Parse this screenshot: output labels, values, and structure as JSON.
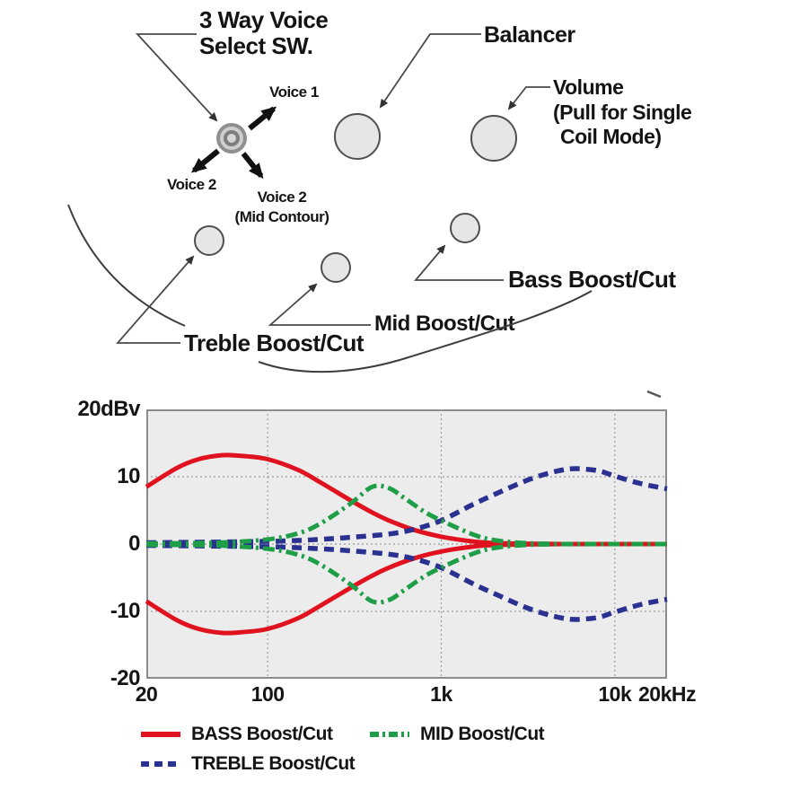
{
  "diagram": {
    "labels": {
      "voice_select_line1": "3 Way Voice",
      "voice_select_line2": "Select SW.",
      "balancer": "Balancer",
      "volume_line1": "Volume",
      "volume_line2": "(Pull for Single",
      "volume_line3": "Coil Mode)",
      "voice1": "Voice 1",
      "voice2": "Voice 2",
      "voice2_mid_line1": "Voice 2",
      "voice2_mid_line2": "(Mid Contour)",
      "treble": "Treble Boost/Cut",
      "mid": "Mid Boost/Cut",
      "bass": "Bass Boost/Cut"
    }
  },
  "chart_data": {
    "type": "line",
    "x_axis": {
      "scale": "log",
      "min": 20,
      "max": 20000,
      "ticks": [
        {
          "value": 20,
          "label": "20"
        },
        {
          "value": 100,
          "label": "100"
        },
        {
          "value": 1000,
          "label": "1k"
        },
        {
          "value": 10000,
          "label": "10k"
        },
        {
          "value": 20000,
          "label": "20kHz"
        }
      ],
      "gridlines": [
        100,
        1000,
        10000
      ]
    },
    "y_axis": {
      "unit": "dBv",
      "min": -20,
      "max": 20,
      "ticks": [
        {
          "value": 20,
          "label": "20dBv"
        },
        {
          "value": 10,
          "label": "10"
        },
        {
          "value": 0,
          "label": "0"
        },
        {
          "value": -10,
          "label": "-10"
        },
        {
          "value": -20,
          "label": "-20"
        }
      ],
      "gridlines": [
        10,
        0,
        -10
      ]
    },
    "series": [
      {
        "id": "bass",
        "name": "BASS Boost/Cut",
        "color": "#e11220",
        "style": "solid",
        "freq": [
          20,
          30,
          40,
          55,
          70,
          100,
          150,
          200,
          300,
          400,
          500,
          700,
          1000,
          1500,
          2000,
          3000,
          5000,
          10000,
          20000
        ],
        "boost_db": [
          8.5,
          11.3,
          12.6,
          13.2,
          13.1,
          12.6,
          11.0,
          9.2,
          6.5,
          4.7,
          3.5,
          2.1,
          1.1,
          0.4,
          0.15,
          0.05,
          0,
          0,
          0
        ],
        "cut_db": [
          -8.5,
          -11.3,
          -12.6,
          -13.2,
          -13.1,
          -12.6,
          -11.0,
          -9.2,
          -6.5,
          -4.7,
          -3.5,
          -2.1,
          -1.1,
          -0.4,
          -0.15,
          -0.05,
          0,
          0,
          0
        ]
      },
      {
        "id": "treble",
        "name": "TREBLE Boost/Cut",
        "color": "#2a3190",
        "style": "dashed",
        "freq": [
          20,
          100,
          200,
          300,
          500,
          700,
          1000,
          1500,
          2000,
          3000,
          4000,
          5000,
          6000,
          8000,
          10000,
          14000,
          20000
        ],
        "boost_db": [
          0.2,
          0.4,
          0.7,
          1.0,
          1.5,
          2.2,
          3.5,
          5.8,
          7.3,
          9.3,
          10.4,
          11.0,
          11.2,
          10.9,
          10.1,
          9.0,
          8.2
        ],
        "cut_db": [
          -0.2,
          -0.4,
          -0.7,
          -1.0,
          -1.5,
          -2.2,
          -3.5,
          -5.8,
          -7.3,
          -9.3,
          -10.4,
          -11.0,
          -11.2,
          -10.9,
          -10.1,
          -9.0,
          -8.2
        ]
      },
      {
        "id": "mid",
        "name": "MID Boost/Cut",
        "color": "#1f9e48",
        "style": "dash-dot",
        "freq": [
          20,
          50,
          100,
          150,
          200,
          300,
          400,
          500,
          600,
          800,
          1000,
          1500,
          2000,
          3000,
          5000,
          10000,
          20000
        ],
        "boost_db": [
          0.1,
          0.2,
          0.7,
          1.6,
          3.0,
          6.0,
          8.5,
          8.3,
          7.0,
          4.8,
          3.5,
          1.5,
          0.6,
          0.15,
          0,
          0,
          0
        ],
        "cut_db": [
          -0.1,
          -0.2,
          -0.7,
          -1.6,
          -3.0,
          -6.0,
          -8.5,
          -8.3,
          -7.0,
          -4.8,
          -3.5,
          -1.5,
          -0.6,
          -0.15,
          0,
          0,
          0
        ]
      }
    ]
  },
  "legend": {
    "items": [
      {
        "label": "BASS Boost/Cut",
        "color": "#e11220",
        "style": "solid"
      },
      {
        "label": "MID Boost/Cut",
        "color": "#1f9e48",
        "style": "dash-dot"
      },
      {
        "label": "TREBLE Boost/Cut",
        "color": "#2a3190",
        "style": "dashed"
      }
    ]
  }
}
